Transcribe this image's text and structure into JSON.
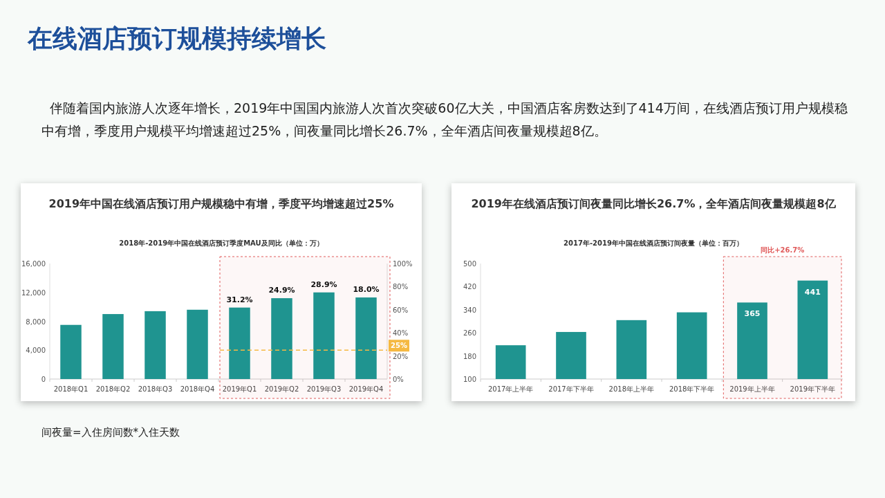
{
  "chart_data": [
    {
      "type": "other",
      "title": "在线酒店预订规模持续增长",
      "subtitle": "伴随着国内旅游人次逐年增长，2019年中国国内旅游人次首次突破60亿大关，中国酒店客房数达到了414万间，在线酒店预订用户规模稳中有增，季度用户规模平均增速超过25%，间夜量同比增长26.7%，全年酒店间夜量规模超8亿。",
      "annotations": [
        "间夜量=入住房间数*入住天数"
      ]
    },
    {
      "type": "bar",
      "title": "2019年中国在线酒店预订用户规模稳中有增，季度平均增速超过25%",
      "subtitle": "2018年-2019年中国在线酒店预订季度MAU及同比（单位：万）",
      "categories": [
        "2018年Q1",
        "2018年Q2",
        "2018年Q3",
        "2018年Q4",
        "2019年Q1",
        "2019年Q2",
        "2019年Q3",
        "2019年Q4"
      ],
      "series": [
        {
          "color": "#1f9490",
          "values": [
            7500,
            9000,
            9400,
            9600,
            9900,
            11200,
            12000,
            11300
          ]
        }
      ],
      "ylim": [
        0,
        16000
      ],
      "yticks": [
        {
          "value": 0,
          "label": "0"
        },
        {
          "value": 4000,
          "label": "4,000"
        },
        {
          "value": 8000,
          "label": "8,000"
        },
        {
          "value": 12000,
          "label": "12,000"
        },
        {
          "value": 16000,
          "label": "16,000"
        }
      ],
      "y2lim": [
        0,
        100
      ],
      "y2ticks": [
        {
          "value": 0,
          "label": "0%"
        },
        {
          "value": 20,
          "label": "20%"
        },
        {
          "value": 40,
          "label": "40%"
        },
        {
          "value": 60,
          "label": "60%"
        },
        {
          "value": 80,
          "label": "80%"
        },
        {
          "value": 100,
          "label": "100%"
        }
      ],
      "ref_lines": [
        {
          "axis": "y2",
          "value": 25,
          "label": "25%",
          "color": "#f5b942",
          "line_style": "dashed"
        }
      ],
      "bands": [
        {
          "axis": "x",
          "from": "2019年Q1",
          "to": "2019年Q4",
          "color": "#e05a5a"
        }
      ],
      "annotations": [
        {
          "text": "31.2%",
          "x": "2019年Q1",
          "y": 9900
        },
        {
          "text": "24.9%",
          "x": "2019年Q2",
          "y": 11200
        },
        {
          "text": "28.9%",
          "x": "2019年Q3",
          "y": 12000
        },
        {
          "text": "18.0%",
          "x": "2019年Q4",
          "y": 11300
        }
      ],
      "grid": false
    },
    {
      "type": "bar",
      "title": "2019年在线酒店预订间夜量同比增长26.7%，全年酒店间夜量规模超8亿",
      "subtitle": "2017年-2019年中国在线酒店预订间夜量（单位：百万）",
      "categories": [
        "2017年上半年",
        "2017年下半年",
        "2018年上半年",
        "2018年下半年",
        "2019年上半年",
        "2019年下半年"
      ],
      "series": [
        {
          "color": "#1f9490",
          "values": [
            217,
            263,
            304,
            331,
            365,
            441
          ],
          "value_labels": [
            null,
            null,
            null,
            null,
            "365",
            "441"
          ]
        }
      ],
      "ylim": [
        100,
        500
      ],
      "yticks": [
        100,
        180,
        260,
        340,
        420,
        500
      ],
      "bands": [
        {
          "axis": "x",
          "from": "2019年上半年",
          "to": "2019年下半年",
          "color": "#e05a5a",
          "label": "同比+26.7%"
        }
      ],
      "grid": false
    }
  ]
}
